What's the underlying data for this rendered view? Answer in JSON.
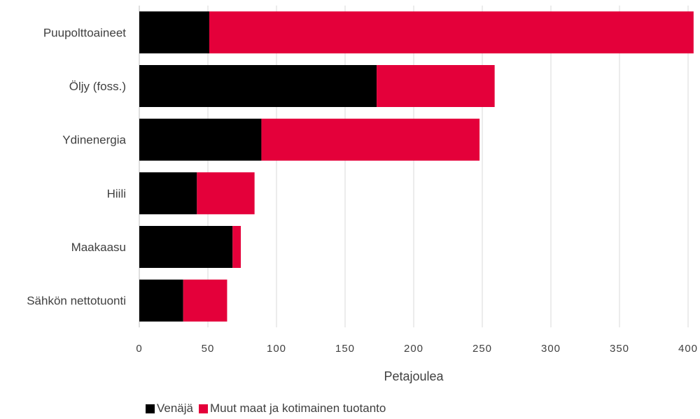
{
  "chart_data": {
    "type": "bar",
    "orientation": "horizontal",
    "stacked": true,
    "categories": [
      "Puupolttoaineet",
      "Öljy (foss.)",
      "Ydinenergia",
      "Hiili",
      "Maakaasu",
      "Sähkön nettotuonti"
    ],
    "series": [
      {
        "name": "Venäjä",
        "color": "#000000",
        "values": [
          51,
          173,
          89,
          42,
          68,
          32
        ]
      },
      {
        "name": "Muut maat ja kotimainen tuotanto",
        "color": "#E4003A",
        "values": [
          353,
          86,
          159,
          42,
          6,
          32
        ]
      }
    ],
    "xlabel": "Petajoulea",
    "ylabel": "",
    "xlim": [
      0,
      400
    ],
    "xticks": [
      0,
      50,
      100,
      150,
      200,
      250,
      300,
      350,
      400
    ],
    "grid": "vertical",
    "legend_position": "bottom"
  }
}
